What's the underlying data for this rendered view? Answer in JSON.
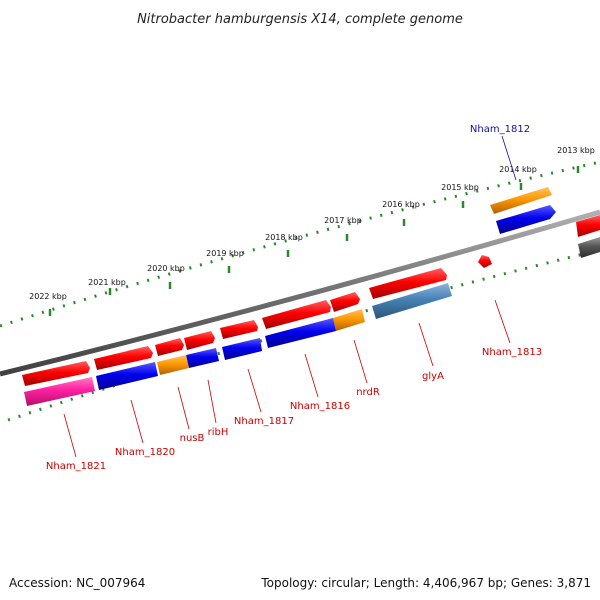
{
  "title": "Nitrobacter hamburgensis X14, complete genome",
  "footer": {
    "accession": "Accession: NC_007964",
    "summary": "Topology: circular; Length: 4,406,967 bp; Genes: 3,871"
  },
  "colors": {
    "red": "#ff0000",
    "blue": "#0000ee",
    "orange": "#ff9900",
    "magenta": "#ff1fa0",
    "steelblue": "#4682b4",
    "gray": "#555555",
    "backbone": "#808080",
    "ticks": "#2a8a2a",
    "label_red": "#cc0000",
    "label_blue": "#1010aa"
  },
  "scale_labels": [
    "2022 kbp",
    "2021 kbp",
    "2020 kbp",
    "2019 kbp",
    "2018 kbp",
    "2017 kbp",
    "2016 kbp",
    "2015 kbp",
    "2014 kbp",
    "2013 kbp"
  ],
  "gene_labels": [
    {
      "text": "Nham_1812",
      "color": "blue"
    },
    {
      "text": "Nham_1813",
      "color": "red"
    },
    {
      "text": "glyA",
      "color": "red"
    },
    {
      "text": "nrdR",
      "color": "red"
    },
    {
      "text": "Nham_1816",
      "color": "red"
    },
    {
      "text": "Nham_1817",
      "color": "red"
    },
    {
      "text": "ribH",
      "color": "red"
    },
    {
      "text": "nusB",
      "color": "red"
    },
    {
      "text": "Nham_1820",
      "color": "red"
    },
    {
      "text": "Nham_1821",
      "color": "red"
    }
  ]
}
